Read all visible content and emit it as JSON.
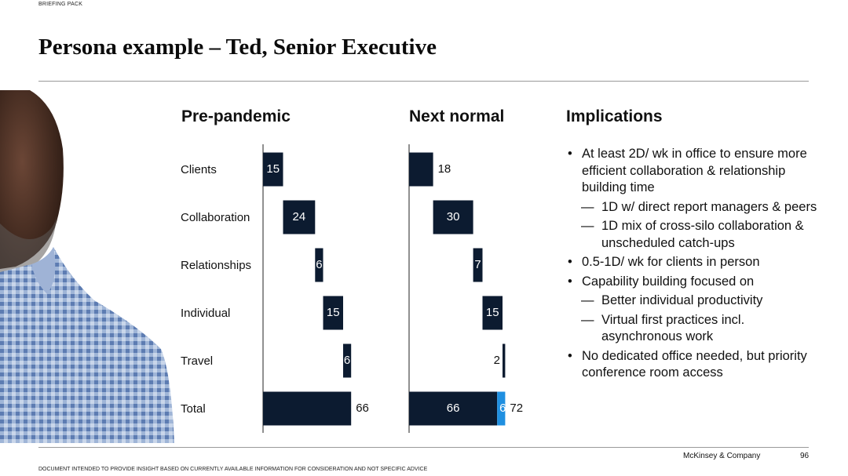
{
  "header": {
    "label": "BRIEFING PACK",
    "title": "Persona example – Ted, Senior Executive"
  },
  "panels": {
    "left_title": "Pre-pandemic",
    "middle_title": "Next normal",
    "right_title": "Implications"
  },
  "rows": [
    "Clients",
    "Collaboration",
    "Relationships",
    "Individual",
    "Travel",
    "Total"
  ],
  "chart_data": [
    {
      "type": "bar",
      "subtype": "waterfall",
      "title": "Pre-pandemic",
      "categories": [
        "Clients",
        "Collaboration",
        "Relationships",
        "Individual",
        "Travel",
        "Total"
      ],
      "values": [
        15,
        24,
        6,
        15,
        6,
        66
      ],
      "labels": [
        "15",
        "24",
        "6",
        "15",
        "6",
        "66"
      ],
      "bar_color": "#0c1b30"
    },
    {
      "type": "bar",
      "subtype": "waterfall",
      "title": "Next normal",
      "categories": [
        "Clients",
        "Collaboration",
        "Relationships",
        "Individual",
        "Travel",
        "Total"
      ],
      "values": [
        18,
        30,
        7,
        15,
        2,
        72
      ],
      "labels": [
        "18",
        "30",
        "7",
        "15",
        "2",
        "72"
      ],
      "total_segments": [
        {
          "value": 66,
          "label": "66",
          "color": "#0c1b30"
        },
        {
          "value": 6,
          "label": "6",
          "color": "#1f8fe0"
        }
      ],
      "bar_color": "#0c1b30"
    }
  ],
  "implications": [
    {
      "level": 1,
      "text": "At least 2D/ wk in office to ensure more efficient collaboration & relationship building time"
    },
    {
      "level": 2,
      "text": "1D w/ direct report managers & peers"
    },
    {
      "level": 2,
      "text": "1D mix of cross-silo collaboration & unscheduled catch-ups"
    },
    {
      "level": 1,
      "text": "0.5-1D/ wk for clients in person"
    },
    {
      "level": 1,
      "text": "Capability building focused on"
    },
    {
      "level": 2,
      "text": "Better individual productivity"
    },
    {
      "level": 2,
      "text": "Virtual first practices incl. asynchronous work"
    },
    {
      "level": 1,
      "text": "No dedicated office needed, but priority conference room access"
    }
  ],
  "footer": {
    "brand": "McKinsey & Company",
    "page": "96",
    "disclaimer": "DOCUMENT INTENDED TO PROVIDE INSIGHT BASED ON CURRENTLY AVAILABLE INFORMATION FOR CONSIDERATION AND NOT SPECIFIC ADVICE"
  }
}
